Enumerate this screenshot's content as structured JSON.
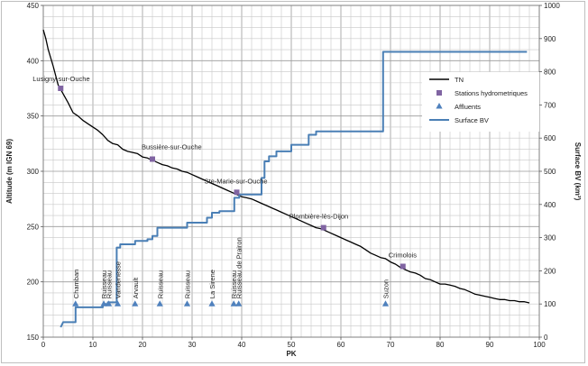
{
  "chart_data": {
    "type": "line",
    "xlabel": "PK",
    "ylabel_left": "Altitude (m IGN 69)",
    "ylabel_right": "Surface BV (km²)",
    "xlim": [
      0,
      100
    ],
    "ylim_left": [
      150,
      450
    ],
    "ylim_right": [
      0,
      1000
    ],
    "x_ticks": [
      0,
      10,
      20,
      30,
      40,
      50,
      60,
      70,
      80,
      90,
      100
    ],
    "y_left_ticks": [
      150,
      200,
      250,
      300,
      350,
      400,
      450
    ],
    "y_right_ticks": [
      0,
      100,
      200,
      300,
      400,
      500,
      600,
      700,
      800,
      900,
      1000
    ],
    "grid": true,
    "legend_position": "right",
    "legend": [
      {
        "name": "TN",
        "marker": "line",
        "color": "#000000"
      },
      {
        "name": "Stations hydrometriques",
        "marker": "square",
        "color": "#8064a2"
      },
      {
        "name": "Affluents",
        "marker": "triangle",
        "color": "#4f81bd"
      },
      {
        "name": "Surface BV",
        "marker": "line",
        "color": "#4a7fb5"
      }
    ],
    "series": [
      {
        "name": "TN",
        "axis": "left",
        "color": "#000000",
        "points": [
          [
            0,
            428
          ],
          [
            0.5,
            420
          ],
          [
            1,
            410
          ],
          [
            2,
            395
          ],
          [
            3,
            378
          ],
          [
            4,
            370
          ],
          [
            5,
            362
          ],
          [
            6,
            353
          ],
          [
            7,
            350
          ],
          [
            8,
            346
          ],
          [
            9,
            343
          ],
          [
            10,
            340
          ],
          [
            11,
            337
          ],
          [
            12,
            333
          ],
          [
            13,
            328
          ],
          [
            14,
            325
          ],
          [
            15,
            324
          ],
          [
            16,
            320
          ],
          [
            17,
            318
          ],
          [
            18,
            317
          ],
          [
            19,
            316
          ],
          [
            20,
            313
          ],
          [
            21,
            312
          ],
          [
            22,
            310
          ],
          [
            23,
            308
          ],
          [
            24,
            306
          ],
          [
            25,
            305
          ],
          [
            26,
            303
          ],
          [
            27,
            302
          ],
          [
            28,
            300
          ],
          [
            29,
            299
          ],
          [
            30,
            297
          ],
          [
            31,
            295
          ],
          [
            32,
            293
          ],
          [
            33,
            291
          ],
          [
            34,
            289
          ],
          [
            35,
            287
          ],
          [
            36,
            285
          ],
          [
            37,
            283
          ],
          [
            38,
            281
          ],
          [
            39,
            279
          ],
          [
            40,
            277
          ],
          [
            41,
            276
          ],
          [
            42,
            275
          ],
          [
            43,
            273
          ],
          [
            44,
            271
          ],
          [
            45,
            269
          ],
          [
            46,
            267
          ],
          [
            47,
            265
          ],
          [
            48,
            263
          ],
          [
            49,
            261
          ],
          [
            50,
            259
          ],
          [
            51,
            257
          ],
          [
            52,
            255
          ],
          [
            53,
            253
          ],
          [
            54,
            251
          ],
          [
            55,
            249
          ],
          [
            56,
            248
          ],
          [
            57,
            246
          ],
          [
            58,
            244
          ],
          [
            59,
            242
          ],
          [
            60,
            240
          ],
          [
            61,
            238
          ],
          [
            62,
            236
          ],
          [
            63,
            234
          ],
          [
            64,
            232
          ],
          [
            65,
            229
          ],
          [
            66,
            226
          ],
          [
            67,
            224
          ],
          [
            68,
            222
          ],
          [
            69,
            221
          ],
          [
            70,
            218
          ],
          [
            71,
            216
          ],
          [
            72,
            213
          ],
          [
            73,
            211
          ],
          [
            74,
            209
          ],
          [
            75,
            208
          ],
          [
            76,
            206
          ],
          [
            77,
            203
          ],
          [
            78,
            202
          ],
          [
            79,
            200
          ],
          [
            80,
            198
          ],
          [
            81,
            198
          ],
          [
            82,
            197
          ],
          [
            83,
            196
          ],
          [
            84,
            194
          ],
          [
            85,
            193
          ],
          [
            86,
            191
          ],
          [
            87,
            189
          ],
          [
            88,
            188
          ],
          [
            89,
            187
          ],
          [
            90,
            186
          ],
          [
            91,
            185
          ],
          [
            92,
            184
          ],
          [
            93,
            184
          ],
          [
            94,
            183
          ],
          [
            95,
            183
          ],
          [
            96,
            182
          ],
          [
            97,
            182
          ],
          [
            98,
            181
          ]
        ]
      },
      {
        "name": "Surface BV",
        "axis": "right",
        "color": "#4a7fb5",
        "points": [
          [
            3.5,
            30
          ],
          [
            4,
            45
          ],
          [
            6.5,
            45
          ],
          [
            6.5,
            90
          ],
          [
            12,
            90
          ],
          [
            12,
            100
          ],
          [
            13,
            100
          ],
          [
            13,
            105
          ],
          [
            14.8,
            105
          ],
          [
            14.8,
            270
          ],
          [
            15.5,
            270
          ],
          [
            15.5,
            280
          ],
          [
            18.5,
            280
          ],
          [
            18.5,
            290
          ],
          [
            21,
            290
          ],
          [
            21,
            295
          ],
          [
            22,
            295
          ],
          [
            22,
            305
          ],
          [
            23,
            305
          ],
          [
            23,
            330
          ],
          [
            29,
            330
          ],
          [
            29,
            345
          ],
          [
            33,
            345
          ],
          [
            33,
            360
          ],
          [
            34,
            360
          ],
          [
            34,
            375
          ],
          [
            35.5,
            375
          ],
          [
            35.5,
            380
          ],
          [
            38.5,
            380
          ],
          [
            38.5,
            420
          ],
          [
            39.5,
            420
          ],
          [
            39.5,
            430
          ],
          [
            44,
            430
          ],
          [
            44,
            480
          ],
          [
            44.6,
            480
          ],
          [
            44.6,
            530
          ],
          [
            45.5,
            530
          ],
          [
            45.5,
            545
          ],
          [
            47,
            545
          ],
          [
            47,
            560
          ],
          [
            50,
            560
          ],
          [
            50,
            580
          ],
          [
            53.5,
            580
          ],
          [
            53.5,
            610
          ],
          [
            55,
            610
          ],
          [
            55,
            620
          ],
          [
            68.5,
            620
          ],
          [
            68.5,
            860
          ],
          [
            97.5,
            860
          ]
        ]
      }
    ],
    "stations": [
      {
        "name": "Lusigny-sur-Ouche",
        "x": 3.5,
        "y": 375
      },
      {
        "name": "Bussière-sur-Ouche",
        "x": 22,
        "y": 311
      },
      {
        "name": "Ste-Marie-sur-Ouche",
        "x": 39,
        "y": 281
      },
      {
        "name": "Plombière-lès-Dijon",
        "x": 56.5,
        "y": 249
      },
      {
        "name": "Crimolois",
        "x": 72.5,
        "y": 214
      }
    ],
    "affluents": [
      {
        "name": "Chamban",
        "x": 6.5
      },
      {
        "name": "Ruisseau",
        "x": 12.2
      },
      {
        "name": "Ruisseau",
        "x": 13.2
      },
      {
        "name": "Vandenesse",
        "x": 15
      },
      {
        "name": "Arvault",
        "x": 18.5
      },
      {
        "name": "Ruisseau",
        "x": 23.5
      },
      {
        "name": "Ruisseau",
        "x": 29
      },
      {
        "name": "La Sirene",
        "x": 34
      },
      {
        "name": "Ruisseau",
        "x": 38.4
      },
      {
        "name": "Ruisseau de Prairon",
        "x": 39.4
      },
      {
        "name": "Suzon",
        "x": 69
      }
    ],
    "affluent_altitude": 180
  }
}
